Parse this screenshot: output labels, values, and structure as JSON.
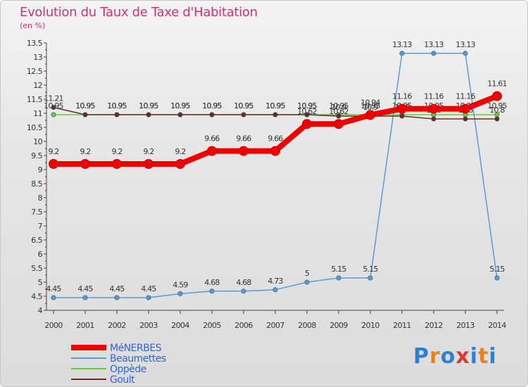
{
  "title": "Evolution du Taux de Taxe d'Habitation",
  "subtitle": "(en %)",
  "logo": {
    "text": "Proxiti",
    "colors": [
      "#2e7fd6",
      "#e8801e",
      "#2e7fd6",
      "#d93a2a",
      "#2e7fd6",
      "#e8801e",
      "#2e7fd6"
    ]
  },
  "chart_data": {
    "type": "line",
    "title": "Evolution du Taux de Taxe d'Habitation",
    "ylabel": "(en %)",
    "x": [
      "2000",
      "2001",
      "2002",
      "2003",
      "2004",
      "2005",
      "2006",
      "2007",
      "2008",
      "2009",
      "2010",
      "2011",
      "2012",
      "2013",
      "2014"
    ],
    "ylim": [
      4,
      13.5
    ],
    "yticks": [
      "4",
      "4.5",
      "5",
      "5.5",
      "6",
      "6.5",
      "7",
      "7.5",
      "8",
      "8.5",
      "9",
      "9.5",
      "10",
      "10.5",
      "11",
      "11.5",
      "12",
      "12.5",
      "13",
      "13.5"
    ],
    "grid": false,
    "legend": "bottom-left",
    "series": [
      {
        "name": "Beaumettes",
        "color": "#5b9bd5",
        "values": [
          4.45,
          4.45,
          4.45,
          4.45,
          4.59,
          4.68,
          4.68,
          4.73,
          5,
          5.15,
          5.15,
          13.13,
          13.13,
          13.13,
          5.15
        ],
        "labels": [
          "4.45",
          "4.45",
          "4.45",
          "4.45",
          "4.59",
          "4.68",
          "4.68",
          "4.73",
          "5",
          "5.15",
          "5.15",
          "13.13",
          "13.13",
          "13.13",
          "5.15"
        ]
      },
      {
        "name": "Oppède",
        "color": "#66cc33",
        "values": [
          10.95,
          10.95,
          10.95,
          10.95,
          10.95,
          10.95,
          10.95,
          10.95,
          10.95,
          10.95,
          10.95,
          10.95,
          10.95,
          10.95,
          10.95
        ],
        "labels": [
          "10.95",
          "10.95",
          "10.95",
          "10.95",
          "10.95",
          "10.95",
          "10.95",
          "10.95",
          "10.95",
          "10.95",
          "10.95",
          "10.95",
          "10.95",
          "10.95",
          "10.95"
        ]
      },
      {
        "name": "Goult",
        "color": "#6b2a2a",
        "values": [
          11.21,
          10.95,
          10.95,
          10.95,
          10.95,
          10.95,
          10.95,
          10.95,
          10.95,
          10.9,
          10.9,
          10.9,
          10.8,
          10.8,
          10.8
        ],
        "labels": [
          "11.21",
          "10.95",
          "10.95",
          "10.95",
          "10.95",
          "10.95",
          "10.95",
          "10.95",
          "10.95",
          "10.9",
          "10.9",
          "10.9",
          "10.8",
          "10.8",
          "10.8"
        ]
      },
      {
        "name": "MéNERBES",
        "color": "#ee0000",
        "values": [
          9.2,
          9.2,
          9.2,
          9.2,
          9.2,
          9.66,
          9.66,
          9.66,
          10.62,
          10.62,
          10.94,
          11.16,
          11.16,
          11.16,
          11.61
        ],
        "labels": [
          "9.2",
          "9.2",
          "9.2",
          "9.2",
          "9.2",
          "9.66",
          "9.66",
          "9.66",
          "10.62",
          "10.62",
          "10.94",
          "11.16",
          "11.16",
          "11.16",
          "11.61"
        ]
      }
    ]
  }
}
